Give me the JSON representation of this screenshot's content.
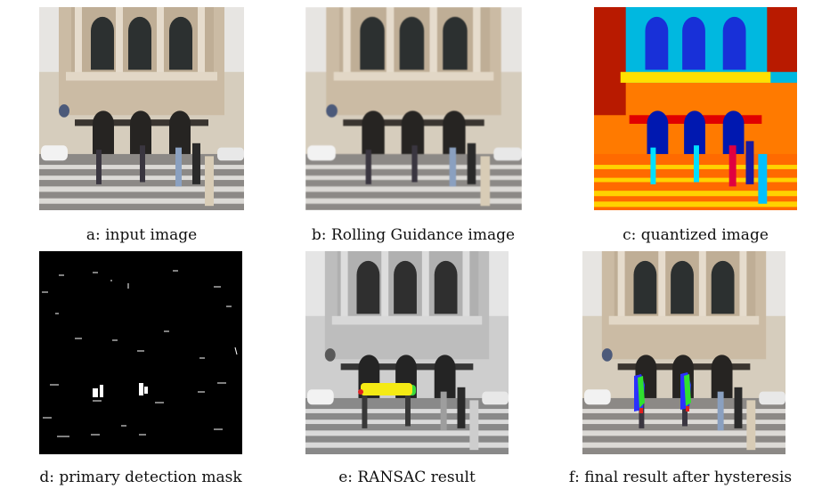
{
  "figure": {
    "panels": [
      {
        "id": "a",
        "caption": "a: input image"
      },
      {
        "id": "b",
        "caption": "b: Rolling Guidance image"
      },
      {
        "id": "c",
        "caption": "c: quantized image"
      },
      {
        "id": "d",
        "caption": "d: primary detection mask"
      },
      {
        "id": "e",
        "caption": "e: RANSAC result"
      },
      {
        "id": "f",
        "caption": "f: final result after hysteresis"
      }
    ]
  }
}
